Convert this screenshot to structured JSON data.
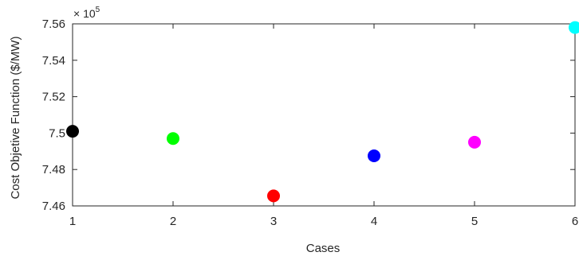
{
  "chart_data": {
    "type": "scatter",
    "title": "",
    "xlabel": "Cases",
    "ylabel": "Cost Objetive Function  ($/MW)",
    "y_exponent_label": {
      "prefix": "× 10",
      "power": "5"
    },
    "xlim": [
      1,
      6
    ],
    "ylim": [
      7.46,
      7.56
    ],
    "x_ticks": [
      1,
      2,
      3,
      4,
      5,
      6
    ],
    "x_tick_labels": [
      "1",
      "2",
      "3",
      "4",
      "5",
      "6"
    ],
    "y_ticks": [
      7.46,
      7.48,
      7.5,
      7.52,
      7.54,
      7.56
    ],
    "y_tick_labels": [
      "7.46",
      "7.48",
      "7.5",
      "7.52",
      "7.54",
      "7.56"
    ],
    "grid": false,
    "box": true,
    "points": [
      {
        "x": 1,
        "y": 7.501,
        "color": "#000000"
      },
      {
        "x": 2,
        "y": 7.497,
        "color": "#00ff00"
      },
      {
        "x": 3,
        "y": 7.4655,
        "color": "#ff0000"
      },
      {
        "x": 4,
        "y": 7.4875,
        "color": "#0000ff"
      },
      {
        "x": 5,
        "y": 7.495,
        "color": "#ff00ff"
      },
      {
        "x": 6,
        "y": 7.558,
        "color": "#00ffff"
      }
    ]
  }
}
